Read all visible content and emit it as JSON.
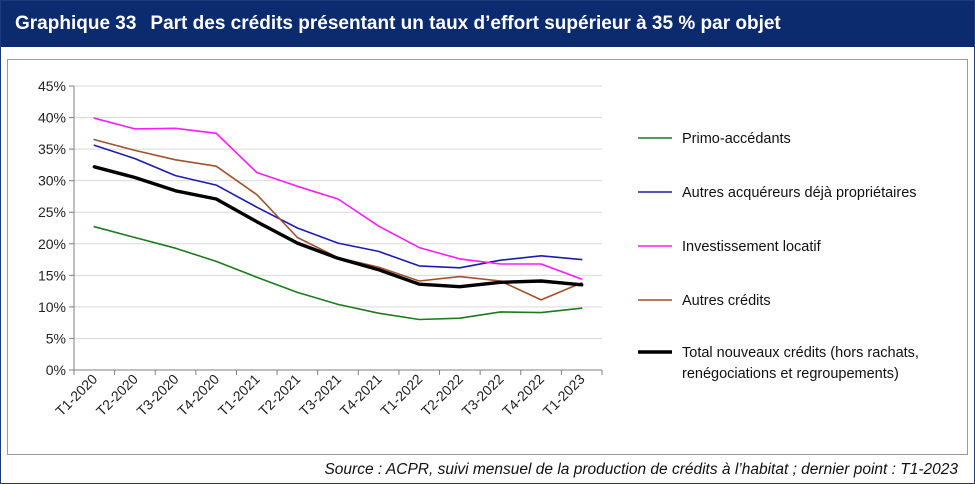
{
  "header": {
    "number": "Graphique 33",
    "title": "Part des crédits présentant un taux d’effort supérieur à 35 % par objet"
  },
  "source": "Source : ACPR, suivi mensuel de la production de crédits à l’habitat ; dernier point : T1-2023",
  "chart_data": {
    "type": "line",
    "title": "",
    "xlabel": "",
    "ylabel": "",
    "ylim": [
      0,
      45
    ],
    "y_ticks": [
      0,
      5,
      10,
      15,
      20,
      25,
      30,
      35,
      40,
      45
    ],
    "y_tick_labels": [
      "0%",
      "5%",
      "10%",
      "15%",
      "20%",
      "25%",
      "30%",
      "35%",
      "40%",
      "45%"
    ],
    "grid": true,
    "legend_position": "right",
    "categories": [
      "T1-2020",
      "T2-2020",
      "T3-2020",
      "T4-2020",
      "T1-2021",
      "T2-2021",
      "T3-2021",
      "T4-2021",
      "T1-2022",
      "T2-2022",
      "T3-2022",
      "T4-2022",
      "T1-2023"
    ],
    "series": [
      {
        "name": "Primo-accédants",
        "color": "#1e7a1e",
        "line_width": 1.6,
        "values": [
          22.7,
          21.0,
          19.3,
          17.2,
          14.7,
          12.3,
          10.4,
          9.0,
          8.0,
          8.2,
          9.2,
          9.1,
          9.8
        ]
      },
      {
        "name": "Autres acquéreurs déjà propriétaires",
        "color": "#1c1cb0",
        "line_width": 1.6,
        "values": [
          35.6,
          33.5,
          30.8,
          29.3,
          25.8,
          22.5,
          20.1,
          18.8,
          16.5,
          16.2,
          17.4,
          18.1,
          17.5
        ]
      },
      {
        "name": "Investissement locatif",
        "color": "#ff1aff",
        "line_width": 1.6,
        "values": [
          39.9,
          38.2,
          38.3,
          37.5,
          31.3,
          29.1,
          27.1,
          22.8,
          19.4,
          17.6,
          16.8,
          16.8,
          14.4
        ]
      },
      {
        "name": "Autres crédits",
        "color": "#a0522d",
        "line_width": 1.6,
        "values": [
          36.5,
          34.8,
          33.3,
          32.3,
          27.8,
          21.0,
          17.8,
          16.3,
          14.1,
          14.8,
          14.1,
          11.1,
          13.8
        ]
      },
      {
        "name": "Total nouveaux crédits (hors rachats, renégociations et regroupements)",
        "legend_lines": [
          "Total nouveaux crédits (hors rachats,",
          "renégociations et regroupements)"
        ],
        "color": "#000000",
        "line_width": 3.4,
        "values": [
          32.2,
          30.5,
          28.4,
          27.1,
          23.5,
          20.1,
          17.7,
          15.9,
          13.6,
          13.2,
          13.9,
          14.1,
          13.5
        ]
      }
    ]
  }
}
